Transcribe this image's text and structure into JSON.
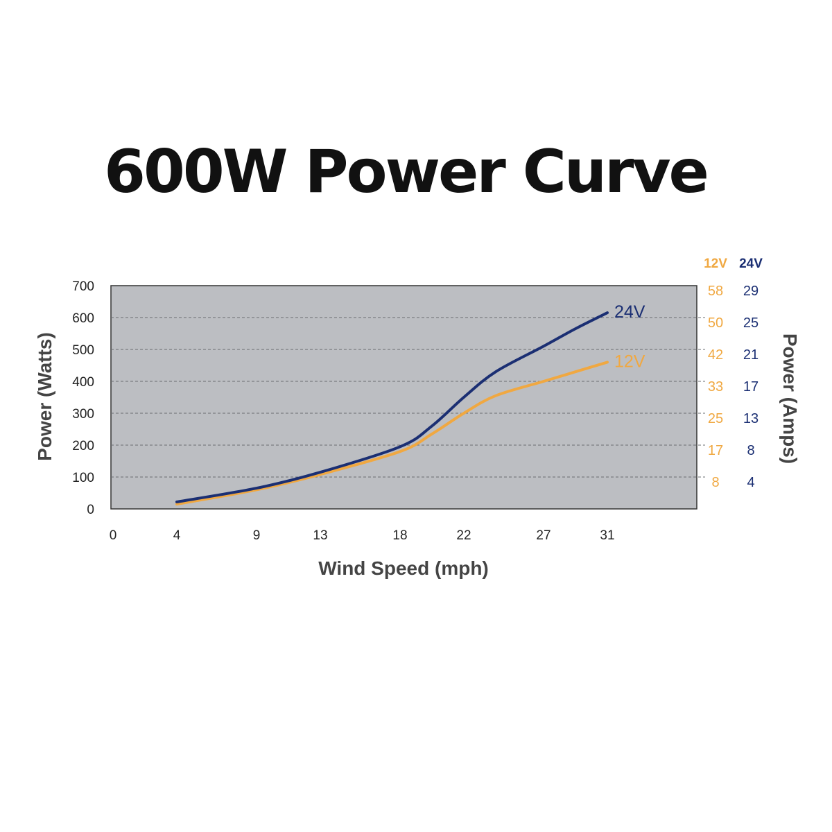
{
  "title": "600W Power Curve",
  "chart_data": {
    "type": "line",
    "x_ticks": [
      "0",
      "4",
      "9",
      "13",
      "18",
      "22",
      "27",
      "31"
    ],
    "y_ticks": [
      "0",
      "100",
      "200",
      "300",
      "400",
      "500",
      "600",
      "700"
    ],
    "xlabel": "Wind Speed (mph)",
    "ylabel": "Power (Watts)",
    "ylabel_right": "Power (Amps)",
    "xlim": [
      0,
      35
    ],
    "ylim": [
      0,
      700
    ],
    "grid": "horizontal dashed",
    "background": "#bcbec2",
    "series": [
      {
        "name": "24V",
        "color": "#1b2f73",
        "x": [
          4,
          9,
          13,
          18,
          20,
          22,
          24,
          27,
          29,
          31
        ],
        "y": [
          22,
          65,
          115,
          195,
          260,
          350,
          430,
          510,
          565,
          615
        ]
      },
      {
        "name": "12V",
        "color": "#f0a841",
        "x": [
          4,
          9,
          13,
          18,
          20,
          22,
          24,
          27,
          29,
          31
        ],
        "y": [
          15,
          60,
          108,
          180,
          235,
          300,
          355,
          400,
          430,
          460
        ]
      }
    ],
    "amps_table": {
      "headers": [
        "12V",
        "24V"
      ],
      "rows": [
        {
          "a12": "58",
          "a24": "29",
          "watts": 700
        },
        {
          "a12": "50",
          "a24": "25",
          "watts": 600
        },
        {
          "a12": "42",
          "a24": "21",
          "watts": 500
        },
        {
          "a12": "33",
          "a24": "17",
          "watts": 400
        },
        {
          "a12": "25",
          "a24": "13",
          "watts": 300
        },
        {
          "a12": "17",
          "a24": "8",
          "watts": 200
        },
        {
          "a12": "8",
          "a24": "4",
          "watts": 100
        }
      ]
    }
  }
}
